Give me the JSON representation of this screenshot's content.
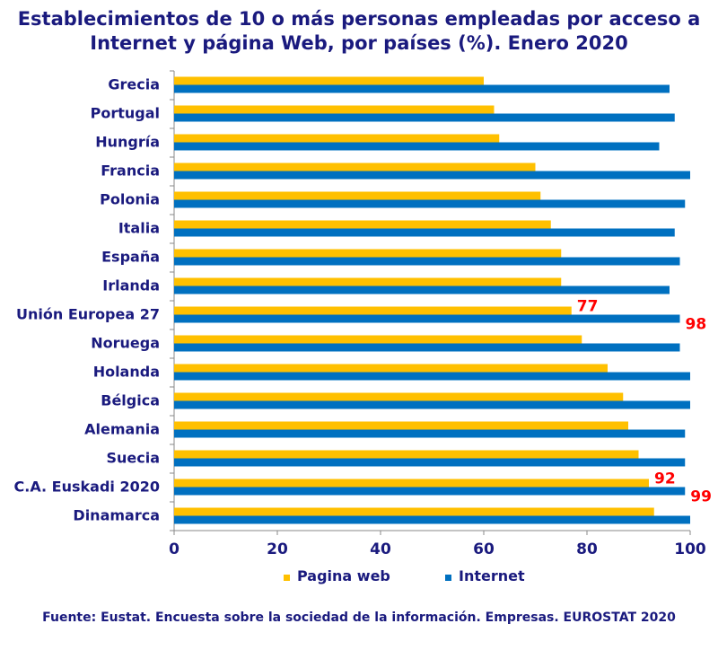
{
  "chart_data": {
    "type": "bar",
    "orientation": "horizontal",
    "title_lines": [
      "Establecimientos de 10 o más personas empleadas por acceso a",
      "Internet y página Web, por países (%). Enero 2020"
    ],
    "categories": [
      "Grecia",
      "Portugal",
      "Hungría",
      "Francia",
      "Polonia",
      "Italia",
      "España",
      "Irlanda",
      "Unión Europea 27",
      "Noruega",
      "Holanda",
      "Bélgica",
      "Alemania",
      "Suecia",
      "C.A. Euskadi 2020",
      "Dinamarca"
    ],
    "series": [
      {
        "name": "Pagina web",
        "color": "#ffc000",
        "values": [
          60,
          62,
          63,
          70,
          71,
          73,
          75,
          75,
          77,
          79,
          84,
          87,
          88,
          90,
          92,
          93
        ]
      },
      {
        "name": "Internet",
        "color": "#0070c0",
        "values": [
          96,
          97,
          94,
          100,
          99,
          97,
          98,
          96,
          98,
          98,
          100,
          100,
          99,
          99,
          99,
          100
        ]
      }
    ],
    "data_labels": [
      {
        "category": "Unión Europea 27",
        "series": "Pagina web",
        "text": "77"
      },
      {
        "category": "Unión Europea 27",
        "series": "Internet",
        "text": "98"
      },
      {
        "category": "C.A. Euskadi 2020",
        "series": "Pagina web",
        "text": "92"
      },
      {
        "category": "C.A. Euskadi 2020",
        "series": "Internet",
        "text": "99"
      }
    ],
    "xlim": [
      0,
      100
    ],
    "xticks": [
      "0",
      "20",
      "40",
      "60",
      "80",
      "100"
    ],
    "label_color": "#ff0000",
    "text_color": "#1a1a7e",
    "legend_position": "bottom",
    "source": "Fuente: Eustat. Encuesta sobre la sociedad de la información. Empresas. EUROSTAT 2020"
  }
}
